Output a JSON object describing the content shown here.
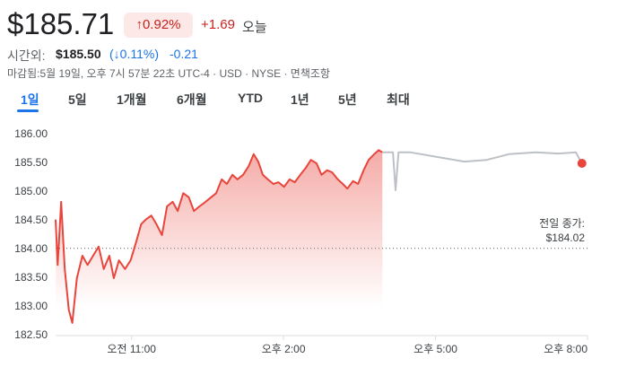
{
  "quote": {
    "price": "$185.71",
    "change_percent": "↑0.92%",
    "change": "+1.69",
    "change_period": "오늘",
    "after_hours_label": "시간외:",
    "after_hours_price": "$185.50",
    "after_hours_change_percent": "(↓0.11%)",
    "after_hours_change": "-0.21",
    "status": "마감됨:5월 19일, 오후 7시 57분 22초 UTC-4 · USD · NYSE · 면책조항"
  },
  "tabs": [
    "1일",
    "5일",
    "1개월",
    "6개월",
    "YTD",
    "1년",
    "5년",
    "최대"
  ],
  "selected_tab": 0,
  "chart_data": {
    "type": "line",
    "xlim": [
      9.5,
      20
    ],
    "xticks": [
      {
        "value": 11,
        "label": "오전 11:00"
      },
      {
        "value": 14,
        "label": "오후 2:00"
      },
      {
        "value": 17,
        "label": "오후 5:00"
      },
      {
        "value": 20,
        "label": "오후 8:00"
      }
    ],
    "ylim": [
      182.5,
      186
    ],
    "yticks": [
      {
        "value": 182.5,
        "label": "182.50"
      },
      {
        "value": 183,
        "label": "183.00"
      },
      {
        "value": 183.5,
        "label": "183.50"
      },
      {
        "value": 184,
        "label": "184.00"
      },
      {
        "value": 184.5,
        "label": "184.50"
      },
      {
        "value": 185,
        "label": "185.00"
      },
      {
        "value": 185.5,
        "label": "185.50"
      },
      {
        "value": 186,
        "label": "186.00"
      }
    ],
    "grid": false,
    "previous_close": {
      "label": "전일 종가:",
      "value": 184.02,
      "value_label": "$184.02"
    },
    "series": [
      {
        "color": "#e8453c",
        "fill": true,
        "x": [
          9.5,
          9.54,
          9.61,
          9.68,
          9.76,
          9.83,
          9.92,
          10.03,
          10.13,
          10.24,
          10.35,
          10.45,
          10.56,
          10.65,
          10.75,
          10.87,
          10.98,
          11.09,
          11.19,
          11.28,
          11.39,
          11.49,
          11.6,
          11.7,
          11.81,
          11.91,
          12.02,
          12.13,
          12.23,
          12.34,
          12.46,
          12.57,
          12.67,
          12.78,
          12.88,
          12.99,
          13.09,
          13.2,
          13.31,
          13.41,
          13.5,
          13.59,
          13.69,
          13.8,
          13.9,
          14.01,
          14.12,
          14.22,
          14.33,
          14.43,
          14.54,
          14.65,
          14.75,
          14.86,
          14.96,
          15.07,
          15.17,
          15.26,
          15.37,
          15.47,
          15.58,
          15.68,
          15.79,
          15.88,
          15.95
        ],
        "values": [
          184.52,
          183.73,
          184.83,
          183.66,
          182.95,
          182.72,
          183.5,
          183.89,
          183.73,
          183.89,
          184.05,
          183.66,
          183.89,
          183.5,
          183.81,
          183.66,
          183.81,
          184.13,
          184.44,
          184.52,
          184.59,
          184.44,
          184.25,
          184.75,
          184.83,
          184.67,
          184.98,
          184.91,
          184.67,
          184.75,
          184.83,
          184.91,
          184.98,
          185.22,
          185.14,
          185.3,
          185.22,
          185.3,
          185.45,
          185.66,
          185.53,
          185.3,
          185.22,
          185.14,
          185.17,
          185.09,
          185.22,
          185.17,
          185.3,
          185.41,
          185.56,
          185.5,
          185.3,
          185.38,
          185.34,
          185.22,
          185.14,
          185.06,
          185.19,
          185.14,
          185.38,
          185.56,
          185.66,
          185.73,
          185.69
        ]
      },
      {
        "color": "#bdc1c6",
        "fill": false,
        "x": [
          15.95,
          16.08,
          16.16,
          16.21,
          16.27,
          16.51,
          17.04,
          17.57,
          18.01,
          18.45,
          18.98,
          19.42,
          19.77,
          19.89
        ],
        "values": [
          185.69,
          185.69,
          185.69,
          185.03,
          185.69,
          185.69,
          185.61,
          185.53,
          185.56,
          185.66,
          185.69,
          185.67,
          185.69,
          185.5
        ],
        "end_marker_color": "#e8453c"
      }
    ]
  }
}
